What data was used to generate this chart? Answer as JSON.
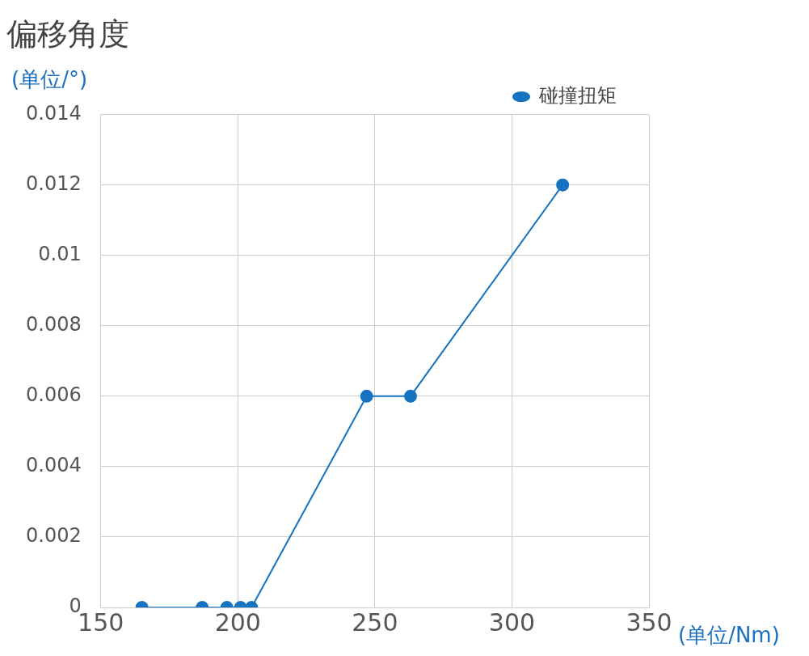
{
  "chart_data": {
    "type": "line",
    "title": "偏移角度",
    "ylabel": "(单位/°)",
    "xlabel": "(单位/Nm)",
    "x": [
      165,
      187,
      196,
      201,
      205,
      247,
      263,
      318.5
    ],
    "series": [
      {
        "name": "碰撞扭矩",
        "color": "#1573c1",
        "values": [
          0,
          0,
          0,
          0,
          0,
          0.006,
          0.006,
          0.012
        ]
      }
    ],
    "xlim": [
      150,
      350
    ],
    "xticks": [
      150,
      200,
      250,
      300,
      350
    ],
    "ylim": [
      0,
      0.014
    ],
    "yticks": [
      0,
      0.002,
      0.004,
      0.006,
      0.008,
      0.01,
      0.012,
      0.014
    ],
    "grid": true,
    "legend": "top right",
    "marker": "circle",
    "line_style": "solid"
  }
}
